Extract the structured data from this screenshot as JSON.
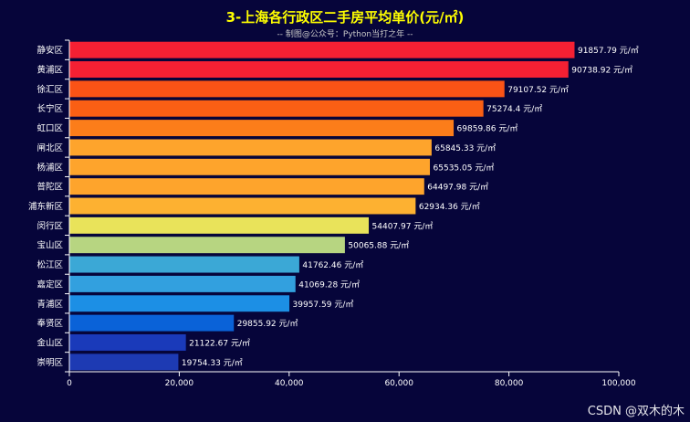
{
  "chart_data": {
    "type": "bar",
    "orientation": "horizontal",
    "title": "3-上海各行政区二手房平均单价(元/㎡)",
    "subtitle": "-- 制图@公众号：Python当打之年 --",
    "categories": [
      "静安区",
      "黄浦区",
      "徐汇区",
      "长宁区",
      "虹口区",
      "闸北区",
      "杨浦区",
      "普陀区",
      "浦东新区",
      "闵行区",
      "宝山区",
      "松江区",
      "嘉定区",
      "青浦区",
      "奉贤区",
      "金山区",
      "崇明区"
    ],
    "values": [
      91857.79,
      90738.92,
      79107.52,
      75274.4,
      69859.86,
      65845.33,
      65535.05,
      64497.98,
      62934.36,
      54407.97,
      50065.88,
      41762.46,
      41069.28,
      39957.59,
      29855.92,
      21122.67,
      19754.33
    ],
    "value_labels": [
      "91857.79 元/㎡",
      "90738.92 元/㎡",
      "79107.52 元/㎡",
      "75274.4 元/㎡",
      "69859.86 元/㎡",
      "65845.33 元/㎡",
      "65535.05 元/㎡",
      "64497.98 元/㎡",
      "62934.36 元/㎡",
      "54407.97 元/㎡",
      "50065.88 元/㎡",
      "41762.46 元/㎡",
      "41069.28 元/㎡",
      "39957.59 元/㎡",
      "29855.92 元/㎡",
      "21122.67 元/㎡",
      "19754.33 元/㎡"
    ],
    "bar_colors": [
      "#f52033",
      "#f52033",
      "#fa5316",
      "#fa5f14",
      "#fc7d1a",
      "#fea42c",
      "#fea42c",
      "#fea42c",
      "#fdb131",
      "#e9e35a",
      "#b7d581",
      "#3ba8d6",
      "#32a0df",
      "#1c8fe5",
      "#0a62d8",
      "#1a3aba",
      "#1d3ab3"
    ],
    "xlim": [
      0,
      100000
    ],
    "x_ticks": [
      0,
      20000,
      40000,
      60000,
      80000,
      100000
    ],
    "x_tick_labels": [
      "0",
      "20,000",
      "40,000",
      "60,000",
      "80,000",
      "100,000"
    ],
    "xlabel": "",
    "ylabel": "",
    "grid": false
  },
  "colors": {
    "background": "#06053a",
    "title": "#ffff00",
    "axis": "#ffffff",
    "label": "#ffffff"
  },
  "watermark": "CSDN @双木的木"
}
